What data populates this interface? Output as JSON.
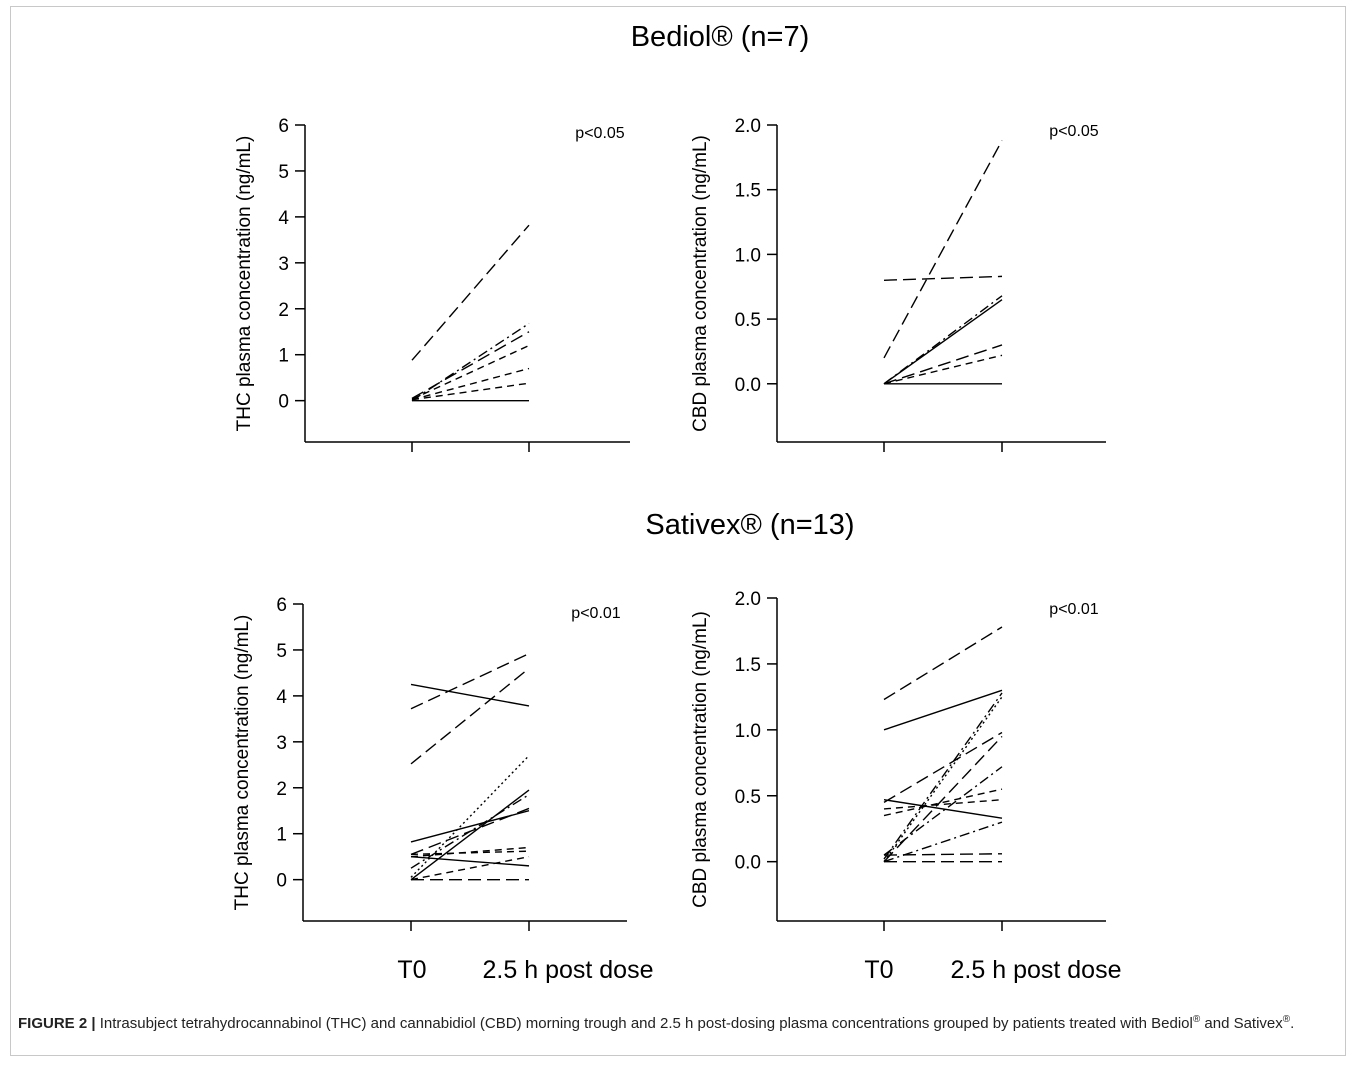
{
  "figure": {
    "section_titles": [
      "Bediol® (n=7)",
      "Sativex® (n=13)"
    ],
    "x_categories": [
      "T0",
      "2.5 h post dose"
    ],
    "caption": {
      "label": "FIGURE 2 |",
      "text_1": " Intrasubject tetrahydrocannabinol (THC) and cannabidiol (CBD) morning trough and 2.5 h post-dosing plasma concentrations grouped by patients treated with Bediol",
      "sup_1": "®",
      "text_2": " and Sativex",
      "sup_2": "®",
      "text_3": "."
    }
  },
  "chart_data": [
    {
      "type": "line",
      "group": "Bediol® (n=7)",
      "ylabel": "THC plasma concentration (ng/mL)",
      "annotation": "p<0.05",
      "categories": [
        "T0",
        "2.5 h post dose"
      ],
      "ylim": [
        -0.9,
        6
      ],
      "yticks": [
        0,
        1,
        2,
        3,
        4,
        5,
        6
      ],
      "ytick_labels": [
        "0",
        "1",
        "2",
        "3",
        "4",
        "5",
        "6"
      ],
      "lines": [
        {
          "values": [
            0.88,
            3.82
          ],
          "style": "long-dash"
        },
        {
          "values": [
            0.0,
            1.68
          ],
          "style": "dash-dot"
        },
        {
          "values": [
            0.05,
            1.5
          ],
          "style": "long-dash"
        },
        {
          "values": [
            0.03,
            1.2
          ],
          "style": "dash"
        },
        {
          "values": [
            0.02,
            0.7
          ],
          "style": "dash"
        },
        {
          "values": [
            0.02,
            0.38
          ],
          "style": "dash"
        },
        {
          "values": [
            0.0,
            0.0
          ],
          "style": "solid"
        }
      ]
    },
    {
      "type": "line",
      "group": "Bediol® (n=7)",
      "ylabel": "CBD plasma concentration (ng/mL)",
      "annotation": "p<0.05",
      "categories": [
        "T0",
        "2.5 h post dose"
      ],
      "ylim": [
        -0.45,
        2.0
      ],
      "yticks": [
        0,
        0.5,
        1.0,
        1.5,
        2.0
      ],
      "ytick_labels": [
        "0.0",
        "0.5",
        "1.0",
        "1.5",
        "2.0"
      ],
      "lines": [
        {
          "values": [
            0.2,
            1.88
          ],
          "style": "long-dash"
        },
        {
          "values": [
            0.8,
            0.83
          ],
          "style": "long-dash"
        },
        {
          "values": [
            0.0,
            0.68
          ],
          "style": "dash-dot"
        },
        {
          "values": [
            0.0,
            0.65
          ],
          "style": "solid"
        },
        {
          "values": [
            0.0,
            0.3
          ],
          "style": "long-dash"
        },
        {
          "values": [
            0.0,
            0.22
          ],
          "style": "dash"
        },
        {
          "values": [
            0.0,
            0.0
          ],
          "style": "solid"
        }
      ]
    },
    {
      "type": "line",
      "group": "Sativex® (n=13)",
      "ylabel": "THC plasma concentration (ng/mL)",
      "annotation": "p<0.01",
      "categories": [
        "T0",
        "2.5 h post dose"
      ],
      "ylim": [
        -0.9,
        6
      ],
      "yticks": [
        0,
        1,
        2,
        3,
        4,
        5,
        6
      ],
      "ytick_labels": [
        "0",
        "1",
        "2",
        "3",
        "4",
        "5",
        "6"
      ],
      "lines": [
        {
          "values": [
            4.25,
            3.78
          ],
          "style": "solid"
        },
        {
          "values": [
            3.72,
            4.92
          ],
          "style": "long-dash"
        },
        {
          "values": [
            2.52,
            4.6
          ],
          "style": "long-dash"
        },
        {
          "values": [
            0.05,
            2.7
          ],
          "style": "dotted"
        },
        {
          "values": [
            0.0,
            1.95
          ],
          "style": "solid"
        },
        {
          "values": [
            0.25,
            1.85
          ],
          "style": "dash-dot"
        },
        {
          "values": [
            0.55,
            1.55
          ],
          "style": "long-dash"
        },
        {
          "values": [
            0.82,
            1.5
          ],
          "style": "solid"
        },
        {
          "values": [
            0.5,
            0.7
          ],
          "style": "dash"
        },
        {
          "values": [
            0.55,
            0.62
          ],
          "style": "dash"
        },
        {
          "values": [
            0.5,
            0.3
          ],
          "style": "solid"
        },
        {
          "values": [
            0.0,
            0.5
          ],
          "style": "dash"
        },
        {
          "values": [
            0.0,
            0.0
          ],
          "style": "long-dash"
        }
      ]
    },
    {
      "type": "line",
      "group": "Sativex® (n=13)",
      "ylabel": "CBD plasma concentration (ng/mL)",
      "annotation": "p<0.01",
      "categories": [
        "T0",
        "2.5 h post dose"
      ],
      "ylim": [
        -0.45,
        2.0
      ],
      "yticks": [
        0,
        0.5,
        1.0,
        1.5,
        2.0
      ],
      "ytick_labels": [
        "0.0",
        "0.5",
        "1.0",
        "1.5",
        "2.0"
      ],
      "lines": [
        {
          "values": [
            1.23,
            1.78
          ],
          "style": "long-dash"
        },
        {
          "values": [
            1.0,
            1.3
          ],
          "style": "solid"
        },
        {
          "values": [
            0.0,
            1.25
          ],
          "style": "dotted"
        },
        {
          "values": [
            0.02,
            1.28
          ],
          "style": "dash-dot"
        },
        {
          "values": [
            0.45,
            0.98
          ],
          "style": "long-dash"
        },
        {
          "values": [
            0.0,
            0.95
          ],
          "style": "long-dash"
        },
        {
          "values": [
            0.05,
            0.72
          ],
          "style": "dash-dot"
        },
        {
          "values": [
            0.35,
            0.55
          ],
          "style": "dash"
        },
        {
          "values": [
            0.4,
            0.47
          ],
          "style": "dash"
        },
        {
          "values": [
            0.47,
            0.33
          ],
          "style": "solid"
        },
        {
          "values": [
            0.0,
            0.3
          ],
          "style": "dash-dot"
        },
        {
          "values": [
            0.05,
            0.06
          ],
          "style": "long-dash"
        },
        {
          "values": [
            0.0,
            0.0
          ],
          "style": "long-dash"
        }
      ]
    }
  ]
}
